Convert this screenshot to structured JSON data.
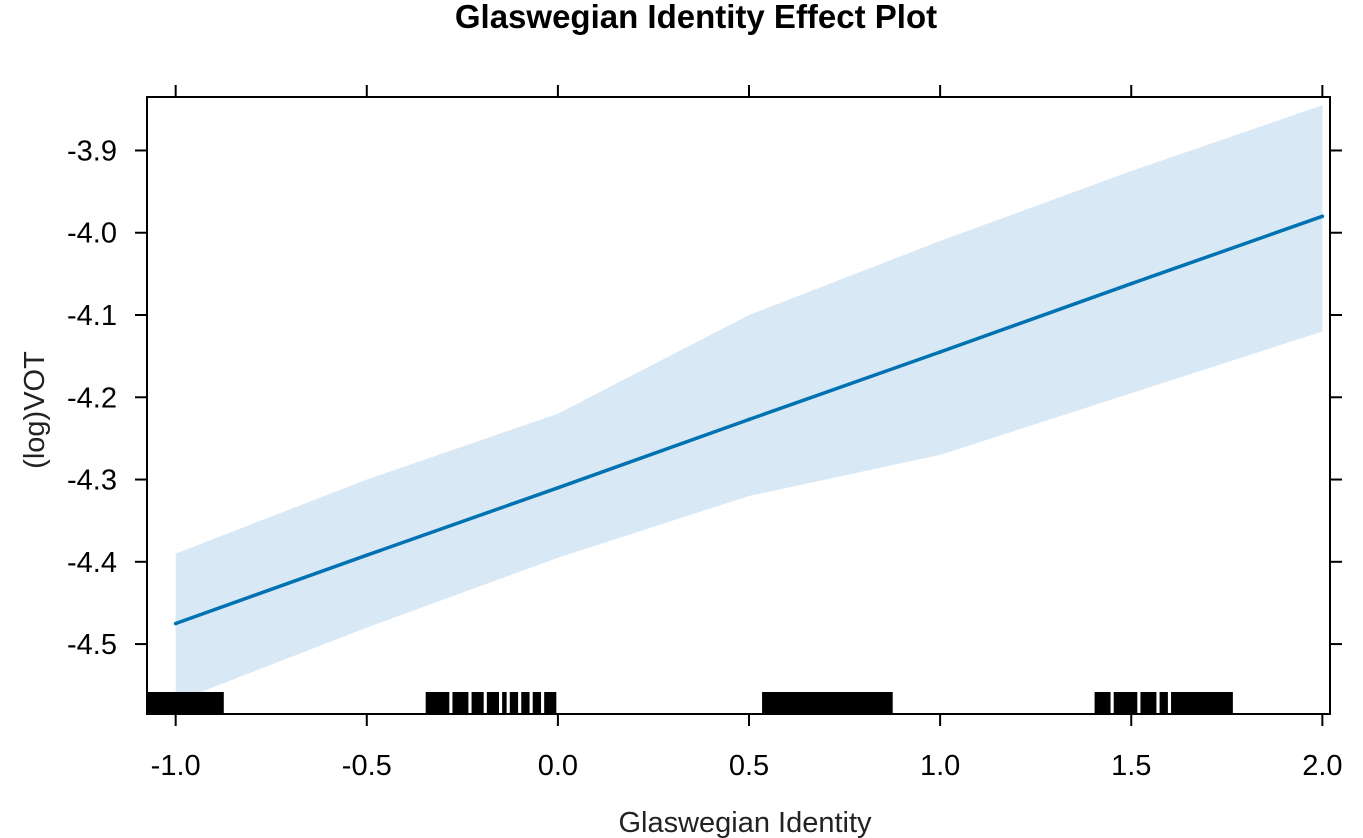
{
  "chart_data": {
    "type": "line",
    "title": "Glaswegian Identity Effect Plot",
    "xlabel": "Glaswegian Identity",
    "ylabel": "(log)VOT",
    "xlim": [
      -1.075,
      2.02
    ],
    "ylim": [
      -4.585,
      -3.835
    ],
    "x_ticks": [
      "-1.0",
      "-0.5",
      "0.0",
      "0.5",
      "1.0",
      "1.5",
      "2.0"
    ],
    "y_ticks": [
      "-3.9",
      "-4.0",
      "-4.1",
      "-4.2",
      "-4.3",
      "-4.4",
      "-4.5"
    ],
    "grid": false,
    "series": [
      {
        "x": [
          -1.0,
          -0.5,
          0.0,
          0.5,
          1.0,
          1.5,
          2.0
        ],
        "values": [
          -4.475,
          -4.392,
          -4.31,
          -4.227,
          -4.145,
          -4.062,
          -3.98
        ],
        "ci_upper": [
          -4.39,
          -4.3,
          -4.22,
          -4.1,
          -4.01,
          -3.925,
          -3.845
        ],
        "ci_lower": [
          -4.57,
          -4.48,
          -4.395,
          -4.32,
          -4.27,
          -4.195,
          -4.12
        ]
      }
    ],
    "rug": [
      -1.07,
      -1.06,
      -1.05,
      -1.04,
      -1.03,
      -1.02,
      -1.01,
      -1.0,
      -0.99,
      -0.98,
      -0.97,
      -0.96,
      -0.95,
      -0.94,
      -0.93,
      -0.92,
      -0.91,
      -0.9,
      -0.89,
      -0.88,
      -0.34,
      -0.33,
      -0.32,
      -0.31,
      -0.3,
      -0.29,
      -0.27,
      -0.26,
      -0.25,
      -0.24,
      -0.22,
      -0.21,
      -0.2,
      -0.18,
      -0.17,
      -0.16,
      -0.14,
      -0.12,
      -0.11,
      -0.09,
      -0.08,
      -0.06,
      -0.05,
      -0.03,
      -0.02,
      -0.01,
      0.54,
      0.55,
      0.56,
      0.57,
      0.58,
      0.59,
      0.6,
      0.61,
      0.62,
      0.63,
      0.64,
      0.65,
      0.66,
      0.67,
      0.68,
      0.69,
      0.7,
      0.71,
      0.72,
      0.73,
      0.74,
      0.75,
      0.76,
      0.77,
      0.78,
      0.79,
      0.8,
      0.81,
      0.82,
      0.83,
      0.84,
      0.85,
      0.86,
      0.87,
      1.41,
      1.42,
      1.43,
      1.44,
      1.46,
      1.47,
      1.48,
      1.49,
      1.5,
      1.51,
      1.53,
      1.54,
      1.55,
      1.56,
      1.58,
      1.59,
      1.61,
      1.62,
      1.63,
      1.64,
      1.65,
      1.66,
      1.67,
      1.68,
      1.69,
      1.7,
      1.71,
      1.72,
      1.73,
      1.74,
      1.75,
      1.76
    ],
    "colors": {
      "line": "#0072B2",
      "band": "#d9e8f5",
      "rug": "#000000"
    }
  }
}
